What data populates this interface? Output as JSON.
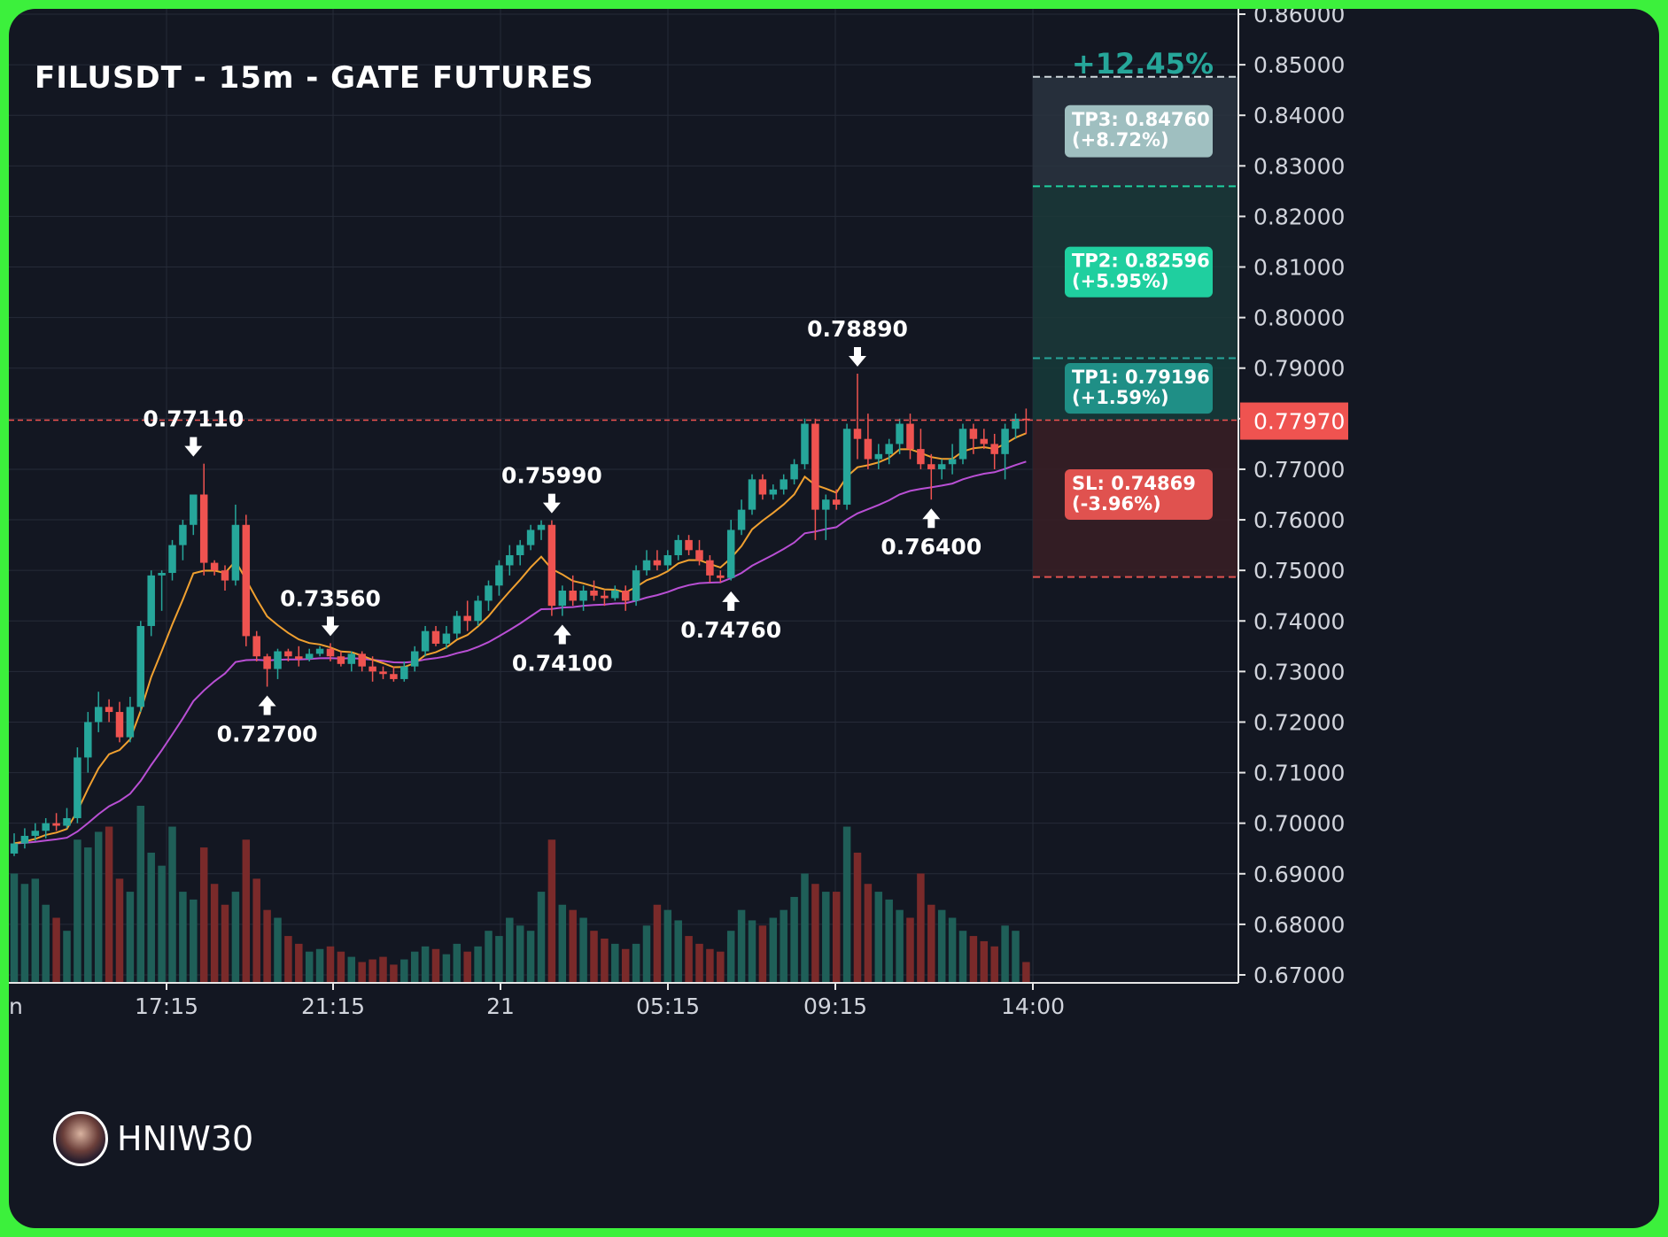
{
  "header": {
    "title": "FILUSDT - 15m - GATE FUTURES"
  },
  "brand": {
    "name": "HNIW30"
  },
  "colors": {
    "background": "#131722",
    "grid": "#262b38",
    "up": "#26a69a",
    "down": "#ef5350",
    "ema_fast": "#f0a030",
    "ema_slow": "#b94fd4",
    "frame": "#3cf03c",
    "tp1": "#26a69a",
    "tp2": "#1fcf9f",
    "tp3": "#9fbfc0",
    "sl": "#e0524f"
  },
  "chart_data": {
    "type": "candlestick",
    "symbol": "FILUSDT",
    "interval": "15m",
    "exchange": "GATE FUTURES",
    "ylim": [
      0.67,
      0.86
    ],
    "y_ticks": [
      "0.86000",
      "0.85000",
      "0.84000",
      "0.83000",
      "0.82000",
      "0.81000",
      "0.80000",
      "0.79000",
      "0.78000",
      "0.77000",
      "0.76000",
      "0.75000",
      "0.74000",
      "0.73000",
      "0.72000",
      "0.71000",
      "0.70000",
      "0.69000",
      "0.68000",
      "0.67000"
    ],
    "x_ticks": [
      "17:15",
      "21:15",
      "21",
      "05:15",
      "09:15",
      "14:00"
    ],
    "x_ticks_partial": "n",
    "last_price": {
      "value": 0.7797,
      "label": "0.77970"
    },
    "gain_label": "+12.45%",
    "targets": [
      {
        "name": "TP3",
        "price": 0.8476,
        "label": "TP3: 0.84760",
        "pct": "(+8.72%)"
      },
      {
        "name": "TP2",
        "price": 0.82596,
        "label": "TP2: 0.82596",
        "pct": "(+5.95%)"
      },
      {
        "name": "TP1",
        "price": 0.79196,
        "label": "TP1: 0.79196",
        "pct": "(+1.59%)"
      }
    ],
    "stop_loss": {
      "price": 0.74869,
      "label": "SL: 0.74869",
      "pct": "(-3.96%)"
    },
    "annotations": [
      {
        "label": "0.77110",
        "price": 0.7711,
        "index": 17,
        "dir": "down"
      },
      {
        "label": "0.72700",
        "price": 0.727,
        "index": 24,
        "dir": "up"
      },
      {
        "label": "0.73560",
        "price": 0.7356,
        "index": 30,
        "dir": "down"
      },
      {
        "label": "0.75990",
        "price": 0.7599,
        "index": 51,
        "dir": "down"
      },
      {
        "label": "0.74100",
        "price": 0.741,
        "index": 52,
        "dir": "up"
      },
      {
        "label": "0.74760",
        "price": 0.7476,
        "index": 68,
        "dir": "up"
      },
      {
        "label": "0.78890",
        "price": 0.7889,
        "index": 80,
        "dir": "down"
      },
      {
        "label": "0.76400",
        "price": 0.764,
        "index": 87,
        "dir": "up"
      }
    ],
    "ohlc": [
      [
        0.694,
        0.698,
        0.6935,
        0.696
      ],
      [
        0.696,
        0.699,
        0.695,
        0.6975
      ],
      [
        0.6975,
        0.7,
        0.6965,
        0.6985
      ],
      [
        0.6985,
        0.701,
        0.697,
        0.7
      ],
      [
        0.7,
        0.702,
        0.6985,
        0.6995
      ],
      [
        0.6995,
        0.703,
        0.699,
        0.701
      ],
      [
        0.701,
        0.715,
        0.7,
        0.713
      ],
      [
        0.713,
        0.722,
        0.71,
        0.72
      ],
      [
        0.72,
        0.726,
        0.718,
        0.723
      ],
      [
        0.723,
        0.7245,
        0.72,
        0.722
      ],
      [
        0.722,
        0.724,
        0.716,
        0.717
      ],
      [
        0.717,
        0.725,
        0.716,
        0.723
      ],
      [
        0.723,
        0.74,
        0.722,
        0.739
      ],
      [
        0.739,
        0.75,
        0.737,
        0.749
      ],
      [
        0.749,
        0.75,
        0.742,
        0.7495
      ],
      [
        0.7495,
        0.756,
        0.748,
        0.755
      ],
      [
        0.755,
        0.76,
        0.752,
        0.759
      ],
      [
        0.759,
        0.765,
        0.757,
        0.765
      ],
      [
        0.765,
        0.7711,
        0.749,
        0.7515
      ],
      [
        0.7515,
        0.752,
        0.749,
        0.75
      ],
      [
        0.75,
        0.751,
        0.746,
        0.748
      ],
      [
        0.748,
        0.763,
        0.747,
        0.759
      ],
      [
        0.759,
        0.761,
        0.735,
        0.737
      ],
      [
        0.737,
        0.738,
        0.732,
        0.733
      ],
      [
        0.733,
        0.7335,
        0.727,
        0.7305
      ],
      [
        0.7305,
        0.7345,
        0.7285,
        0.734
      ],
      [
        0.734,
        0.7345,
        0.732,
        0.733
      ],
      [
        0.733,
        0.735,
        0.731,
        0.7325
      ],
      [
        0.7325,
        0.7345,
        0.732,
        0.7335
      ],
      [
        0.7335,
        0.735,
        0.733,
        0.7345
      ],
      [
        0.7345,
        0.7356,
        0.732,
        0.733
      ],
      [
        0.733,
        0.734,
        0.731,
        0.7315
      ],
      [
        0.7315,
        0.734,
        0.73,
        0.7335
      ],
      [
        0.7335,
        0.734,
        0.73,
        0.731
      ],
      [
        0.731,
        0.733,
        0.728,
        0.73
      ],
      [
        0.73,
        0.731,
        0.7285,
        0.7295
      ],
      [
        0.7295,
        0.731,
        0.728,
        0.7285
      ],
      [
        0.7285,
        0.732,
        0.728,
        0.731
      ],
      [
        0.731,
        0.735,
        0.73,
        0.734
      ],
      [
        0.734,
        0.739,
        0.733,
        0.738
      ],
      [
        0.738,
        0.739,
        0.735,
        0.7355
      ],
      [
        0.7355,
        0.739,
        0.7345,
        0.7375
      ],
      [
        0.7375,
        0.742,
        0.7365,
        0.741
      ],
      [
        0.741,
        0.744,
        0.738,
        0.74
      ],
      [
        0.74,
        0.745,
        0.739,
        0.744
      ],
      [
        0.744,
        0.748,
        0.742,
        0.747
      ],
      [
        0.747,
        0.752,
        0.745,
        0.751
      ],
      [
        0.751,
        0.755,
        0.749,
        0.753
      ],
      [
        0.753,
        0.756,
        0.751,
        0.755
      ],
      [
        0.755,
        0.759,
        0.754,
        0.758
      ],
      [
        0.758,
        0.7599,
        0.756,
        0.759
      ],
      [
        0.759,
        0.7599,
        0.741,
        0.743
      ],
      [
        0.743,
        0.747,
        0.741,
        0.746
      ],
      [
        0.746,
        0.749,
        0.743,
        0.744
      ],
      [
        0.744,
        0.747,
        0.742,
        0.746
      ],
      [
        0.746,
        0.748,
        0.744,
        0.745
      ],
      [
        0.745,
        0.746,
        0.743,
        0.7445
      ],
      [
        0.7445,
        0.747,
        0.744,
        0.746
      ],
      [
        0.746,
        0.747,
        0.742,
        0.744
      ],
      [
        0.744,
        0.751,
        0.743,
        0.75
      ],
      [
        0.75,
        0.754,
        0.749,
        0.752
      ],
      [
        0.752,
        0.754,
        0.75,
        0.751
      ],
      [
        0.751,
        0.754,
        0.75,
        0.753
      ],
      [
        0.753,
        0.757,
        0.752,
        0.756
      ],
      [
        0.756,
        0.757,
        0.753,
        0.754
      ],
      [
        0.754,
        0.756,
        0.751,
        0.752
      ],
      [
        0.752,
        0.753,
        0.7476,
        0.749
      ],
      [
        0.749,
        0.75,
        0.7476,
        0.7485
      ],
      [
        0.7485,
        0.76,
        0.748,
        0.758
      ],
      [
        0.758,
        0.764,
        0.757,
        0.762
      ],
      [
        0.762,
        0.769,
        0.761,
        0.768
      ],
      [
        0.768,
        0.769,
        0.764,
        0.765
      ],
      [
        0.765,
        0.767,
        0.764,
        0.766
      ],
      [
        0.766,
        0.769,
        0.765,
        0.768
      ],
      [
        0.768,
        0.772,
        0.767,
        0.771
      ],
      [
        0.771,
        0.78,
        0.77,
        0.779
      ],
      [
        0.779,
        0.78,
        0.756,
        0.762
      ],
      [
        0.762,
        0.765,
        0.756,
        0.764
      ],
      [
        0.764,
        0.766,
        0.762,
        0.763
      ],
      [
        0.763,
        0.779,
        0.762,
        0.778
      ],
      [
        0.778,
        0.7889,
        0.772,
        0.776
      ],
      [
        0.776,
        0.781,
        0.77,
        0.772
      ],
      [
        0.772,
        0.775,
        0.77,
        0.773
      ],
      [
        0.773,
        0.776,
        0.771,
        0.775
      ],
      [
        0.775,
        0.78,
        0.773,
        0.779
      ],
      [
        0.779,
        0.781,
        0.772,
        0.774
      ],
      [
        0.774,
        0.778,
        0.77,
        0.771
      ],
      [
        0.771,
        0.773,
        0.764,
        0.77
      ],
      [
        0.77,
        0.772,
        0.768,
        0.771
      ],
      [
        0.771,
        0.775,
        0.769,
        0.772
      ],
      [
        0.772,
        0.779,
        0.771,
        0.778
      ],
      [
        0.778,
        0.779,
        0.773,
        0.776
      ],
      [
        0.776,
        0.778,
        0.774,
        0.775
      ],
      [
        0.775,
        0.777,
        0.77,
        0.773
      ],
      [
        0.773,
        0.779,
        0.768,
        0.778
      ],
      [
        0.778,
        0.781,
        0.776,
        0.78
      ],
      [
        0.78,
        0.782,
        0.777,
        0.7797
      ]
    ],
    "volume": [
      42,
      38,
      40,
      30,
      25,
      20,
      55,
      52,
      58,
      60,
      40,
      35,
      68,
      50,
      45,
      60,
      35,
      32,
      52,
      38,
      30,
      35,
      55,
      40,
      28,
      25,
      18,
      15,
      12,
      13,
      14,
      12,
      10,
      8,
      9,
      10,
      7,
      9,
      12,
      14,
      13,
      11,
      15,
      12,
      14,
      20,
      18,
      25,
      22,
      20,
      35,
      55,
      30,
      28,
      25,
      20,
      17,
      15,
      13,
      15,
      22,
      30,
      28,
      24,
      18,
      15,
      13,
      12,
      20,
      28,
      24,
      22,
      25,
      28,
      33,
      42,
      38,
      35,
      35,
      60,
      50,
      38,
      35,
      32,
      28,
      25,
      42,
      30,
      28,
      25,
      20,
      18,
      16,
      14,
      22,
      20,
      8
    ]
  }
}
